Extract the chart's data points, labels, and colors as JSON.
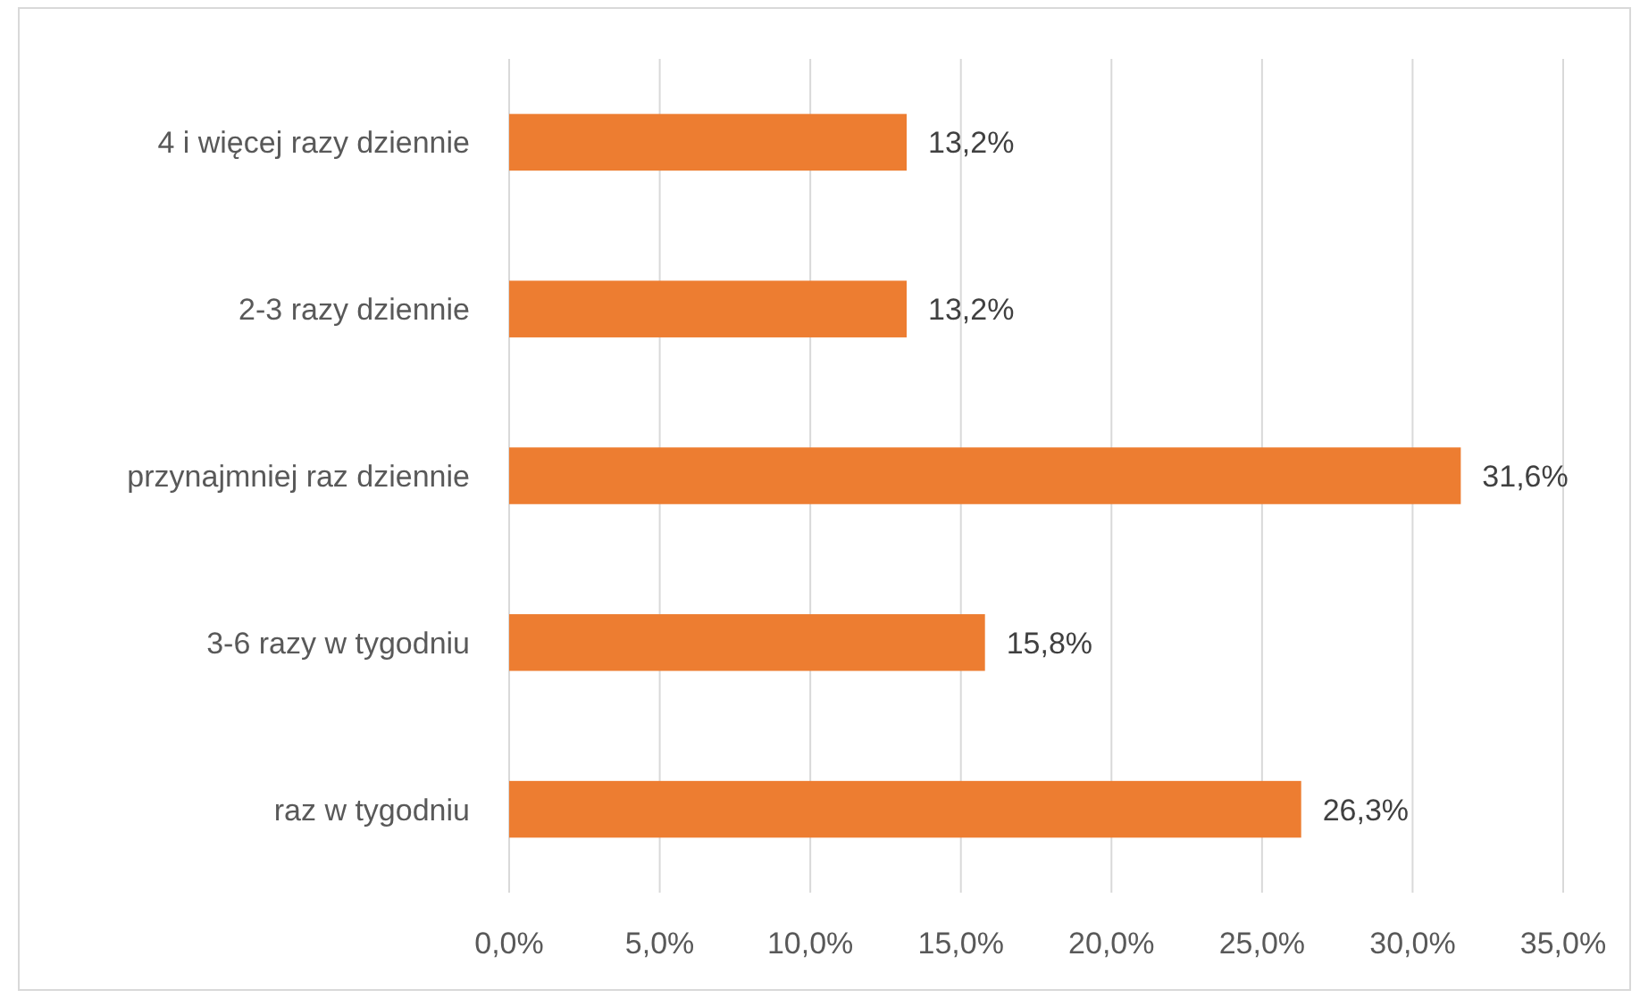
{
  "chart_data": {
    "type": "bar",
    "orientation": "horizontal",
    "categories": [
      "4 i więcej razy dziennie",
      "2-3 razy dziennie",
      "przynajmniej raz dziennie",
      "3-6 razy w tygodniu",
      "raz w tygodniu"
    ],
    "values": [
      13.2,
      13.2,
      31.6,
      15.8,
      26.3
    ],
    "value_labels": [
      "13,2%",
      "13,2%",
      "31,6%",
      "15,8%",
      "26,3%"
    ],
    "color": "#ed7d31",
    "xlim": [
      0,
      35
    ],
    "xticks": [
      {
        "value": 0,
        "label": "0,0%"
      },
      {
        "value": 5,
        "label": "5,0%"
      },
      {
        "value": 10,
        "label": "10,0%"
      },
      {
        "value": 15,
        "label": "15,0%"
      },
      {
        "value": 20,
        "label": "20,0%"
      },
      {
        "value": 25,
        "label": "25,0%"
      },
      {
        "value": 30,
        "label": "30,0%"
      },
      {
        "value": 35,
        "label": "35,0%"
      }
    ],
    "grid": "x"
  }
}
